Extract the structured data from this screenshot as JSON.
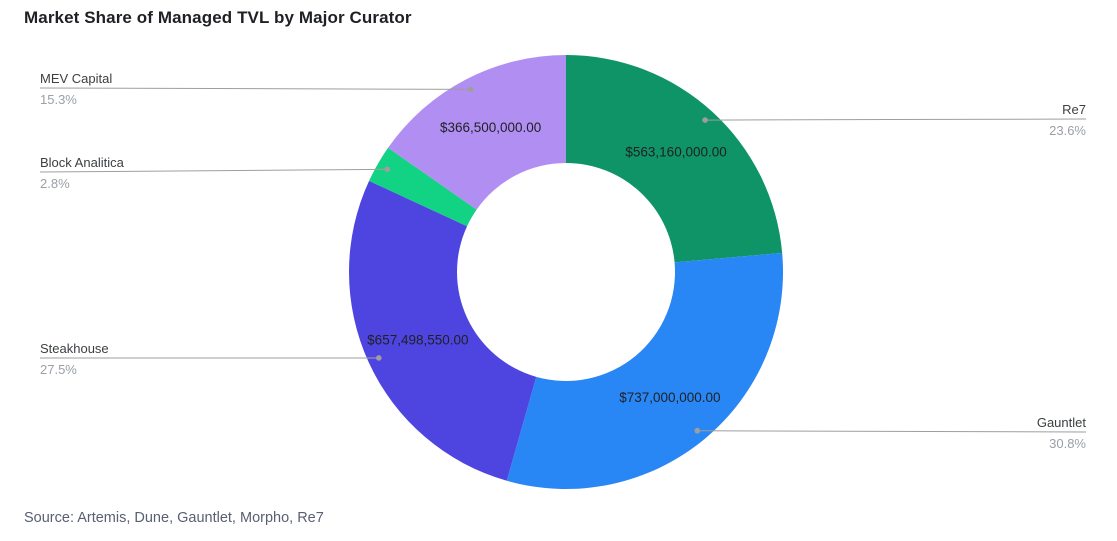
{
  "title": "Market Share of Managed TVL by Major Curator",
  "source": "Source: Artemis, Dune, Gauntlet, Morpho, Re7",
  "chart_data": {
    "type": "pie",
    "subtype": "donut",
    "title": "Market Share of Managed TVL by Major Curator",
    "direction": "clockwise",
    "start_angle_deg": 0,
    "inner_radius_ratio": 0.5,
    "legend_position": "none",
    "annotation_style": "outside callout labels with percent, dollar value labels inside slices",
    "slices": [
      {
        "label": "Re7",
        "pct": 23.6,
        "pct_label": "23.6%",
        "value": 563160000,
        "value_label": "$563,160,000.00",
        "color": "#0e9467"
      },
      {
        "label": "Gauntlet",
        "pct": 30.8,
        "pct_label": "30.8%",
        "value": 737000000,
        "value_label": "$737,000,000.00",
        "color": "#2987f5"
      },
      {
        "label": "Steakhouse",
        "pct": 27.5,
        "pct_label": "27.5%",
        "value": 657498550,
        "value_label": "$657,498,550.00",
        "color": "#4e45e1"
      },
      {
        "label": "Block Analitica",
        "pct": 2.8,
        "pct_label": "2.8%",
        "value_label": "",
        "color": "#12d283"
      },
      {
        "label": "MEV Capital",
        "pct": 15.3,
        "pct_label": "15.3%",
        "value": 366500000,
        "value_label": "$366,500,000.00",
        "color": "#b18ef2"
      }
    ]
  }
}
